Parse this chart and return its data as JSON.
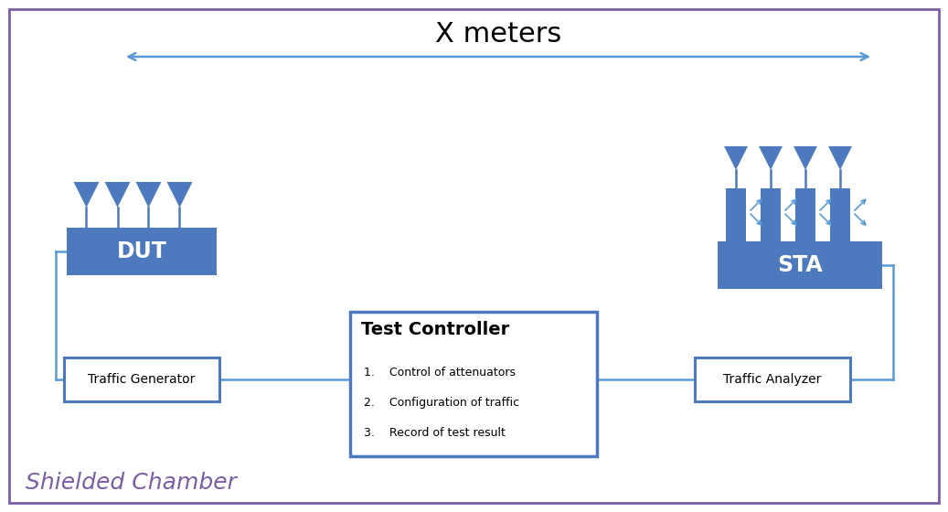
{
  "title": "X meters",
  "bg_color": "#ffffff",
  "border_color": "#7B5EA7",
  "arrow_color": "#5B9BD5",
  "dut_box_color": "#4D79BE",
  "sta_box_color": "#4D79BE",
  "antenna_color": "#4D79BE",
  "attenuator_color": "#4D79BE",
  "wire_color": "#5B9BD5",
  "tc_border_color": "#4D79BE",
  "tg_border_color": "#4D79BE",
  "ta_border_color": "#4D79BE",
  "shielded_chamber_color": "#7B5EA7",
  "dut_label": "DUT",
  "sta_label": "STA",
  "tg_label": "Traffic Generator",
  "ta_label": "Traffic Analyzer",
  "tc_label": "Test Controller",
  "tc_item1": "1.    Control of attenuators",
  "tc_item2": "2.    Configuration of traffic",
  "tc_item3": "3.    Record of test result",
  "shielded_label": "Shielded Chamber",
  "figw": 10.37,
  "figh": 5.6,
  "dpi": 100
}
